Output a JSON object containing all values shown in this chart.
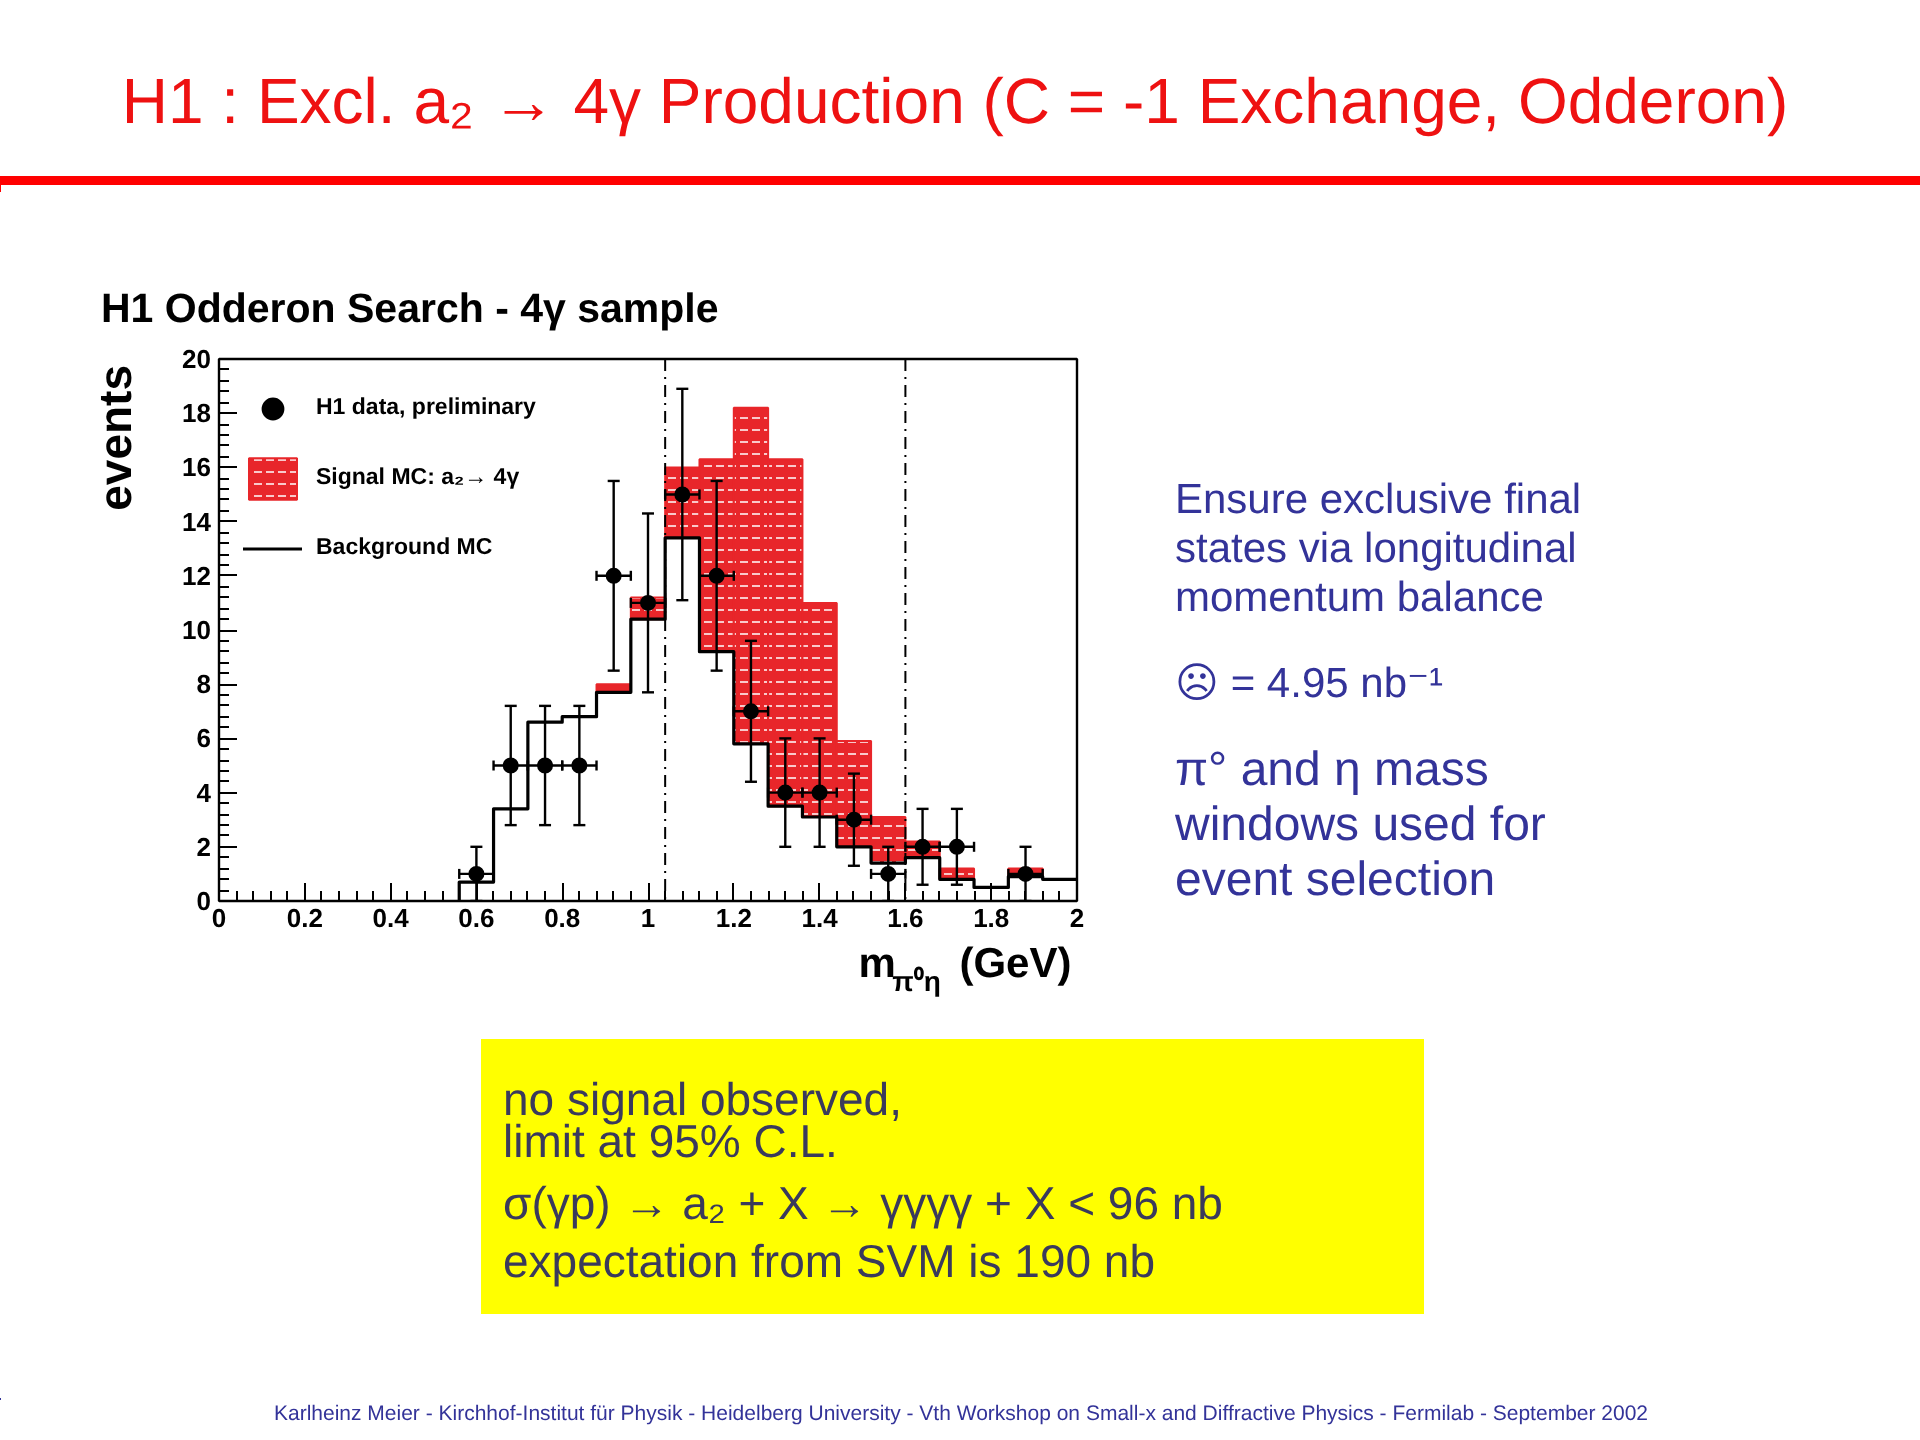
{
  "chart_data": {
    "type": "histogram",
    "title": "H1 : Excl. a₂ → 4γ Production (C = -1 Exchange, Odderon)",
    "subtitle": "H1 Odderon Search - 4γ sample",
    "xlabel": "m$_{π⁰η}$ (GeV)",
    "ylabel": "events",
    "bins": [
      0.56,
      0.64,
      0.72,
      0.8,
      0.88,
      0.96,
      1.04,
      1.12,
      1.2,
      1.28,
      1.36,
      1.44,
      1.52,
      1.6,
      1.68,
      1.76,
      1.84,
      1.92,
      2
    ],
    "series": [
      {
        "name": "Background MC",
        "type": "step",
        "color": "#000000",
        "x": [
          0.56,
          0.64,
          0.72,
          0.8,
          0.88,
          0.96,
          1.04,
          1.12,
          1.2,
          1.28,
          1.36,
          1.44,
          1.52,
          1.6,
          1.68,
          1.76,
          1.84,
          1.92,
          2
        ],
        "values": [
          0,
          0.7,
          3.4,
          6.6,
          6.8,
          7.7,
          10.4,
          13.4,
          9.2,
          5.8,
          3.5,
          3.1,
          2.0,
          1.4,
          1.6,
          0.8,
          0.5,
          0.9,
          0.8
        ]
      },
      {
        "name": "Signal MC: a₂→ 4γ",
        "color": "#e8262a",
        "values": [
          null,
          null,
          null,
          null,
          0.3,
          0.8,
          2.6,
          7.1,
          12.4,
          12.8,
          7.9,
          3.9,
          1.7,
          0.6,
          0.4,
          null,
          0.3,
          null
        ],
        "base": [
          null,
          null,
          null,
          null,
          7.7,
          10.4,
          13.4,
          9.2,
          5.8,
          3.5,
          3.1,
          2.0,
          1.4,
          1.6,
          0.8,
          null,
          0.9,
          null
        ]
      },
      {
        "name": "H1 data, preliminary",
        "type": "scatter",
        "marker": "circle",
        "color": "#000000",
        "x": [
          0.6,
          0.68,
          0.76,
          0.84,
          0.92,
          1.0,
          1.08,
          1.16,
          1.24,
          1.32,
          1.4,
          1.48,
          1.56,
          1.64,
          1.72,
          1.88
        ],
        "values": [
          1,
          5,
          5,
          5,
          12,
          11,
          15,
          12,
          7,
          4,
          4,
          3,
          1,
          2,
          2,
          1
        ],
        "errors": [
          1,
          2.2,
          2.2,
          2.2,
          3.5,
          3.3,
          3.9,
          3.5,
          2.6,
          2,
          2,
          1.7,
          1,
          1.4,
          1.4,
          1
        ],
        "xerrors": [
          0.04,
          0.04,
          0.04,
          0.04,
          0.04,
          0.04,
          0.04,
          0.04,
          0.04,
          0.04,
          0.04,
          0.04,
          0.04,
          0.04,
          0.04,
          0.04
        ]
      }
    ],
    "xlim": [
      0,
      2
    ],
    "ylim": [
      0,
      20
    ],
    "xticks": [
      0,
      0.2,
      0.4,
      0.6,
      0.8,
      1,
      1.2,
      1.4,
      1.6,
      1.8,
      2
    ],
    "yticks": [
      0,
      2,
      4,
      6,
      8,
      10,
      12,
      14,
      16,
      18,
      20
    ],
    "ref_lines": [
      {
        "axis": "x",
        "value": 1.04,
        "line_style": "dashed"
      },
      {
        "axis": "x",
        "value": 1.6,
        "line_style": "dashed"
      }
    ],
    "legend": "top left",
    "annotations": [
      "Ensure exclusive final states via longitudinal momentum balance",
      "☹ = 4.95 nb⁻¹",
      "π° and η mass windows used for event selection",
      "no signal observed,",
      "limit at 95% C.L.",
      "σ(γp) → a₂ + X → γγγγ + X  <  96 nb",
      "expectation from SVM is 190 nb",
      "Karlheinz Meier - Kirchhof-Institut für Physik - Heidelberg University - Vth Workshop on Small-x and Diffractive Physics - Fermilab - September 2002"
    ]
  }
}
